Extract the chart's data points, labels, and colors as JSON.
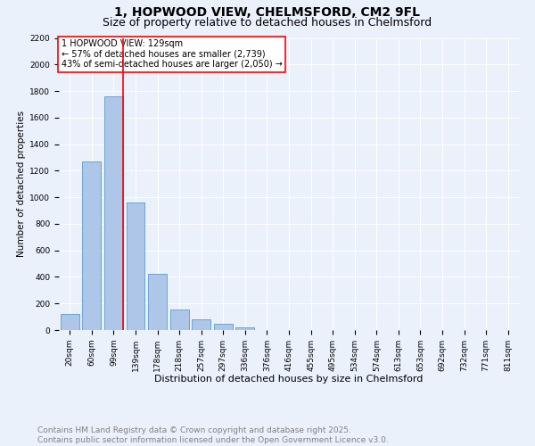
{
  "title_line1": "1, HOPWOOD VIEW, CHELMSFORD, CM2 9FL",
  "title_line2": "Size of property relative to detached houses in Chelmsford",
  "xlabel": "Distribution of detached houses by size in Chelmsford",
  "ylabel": "Number of detached properties",
  "categories": [
    "20sqm",
    "60sqm",
    "99sqm",
    "139sqm",
    "178sqm",
    "218sqm",
    "257sqm",
    "297sqm",
    "336sqm",
    "376sqm",
    "416sqm",
    "455sqm",
    "495sqm",
    "534sqm",
    "574sqm",
    "613sqm",
    "653sqm",
    "692sqm",
    "732sqm",
    "771sqm",
    "811sqm"
  ],
  "values": [
    120,
    1270,
    1760,
    960,
    420,
    155,
    80,
    45,
    20,
    0,
    0,
    0,
    0,
    0,
    0,
    0,
    0,
    0,
    0,
    0,
    0
  ],
  "bar_color": "#aec6e8",
  "bar_edge_color": "#5b9bd5",
  "vline_color": "red",
  "vline_x_index": 2,
  "annotation_text": "1 HOPWOOD VIEW: 129sqm\n← 57% of detached houses are smaller (2,739)\n43% of semi-detached houses are larger (2,050) →",
  "annotation_box_color": "white",
  "annotation_box_edge_color": "red",
  "ylim": [
    0,
    2200
  ],
  "yticks": [
    0,
    200,
    400,
    600,
    800,
    1000,
    1200,
    1400,
    1600,
    1800,
    2000,
    2200
  ],
  "background_color": "#eaf1fb",
  "plot_bg_color": "#eaf1fb",
  "footer_line1": "Contains HM Land Registry data © Crown copyright and database right 2025.",
  "footer_line2": "Contains public sector information licensed under the Open Government Licence v3.0.",
  "footer_fontsize": 6.5,
  "title_fontsize1": 10,
  "title_fontsize2": 9,
  "xlabel_fontsize": 8,
  "ylabel_fontsize": 7.5,
  "tick_fontsize": 6.5,
  "annotation_fontsize": 7
}
